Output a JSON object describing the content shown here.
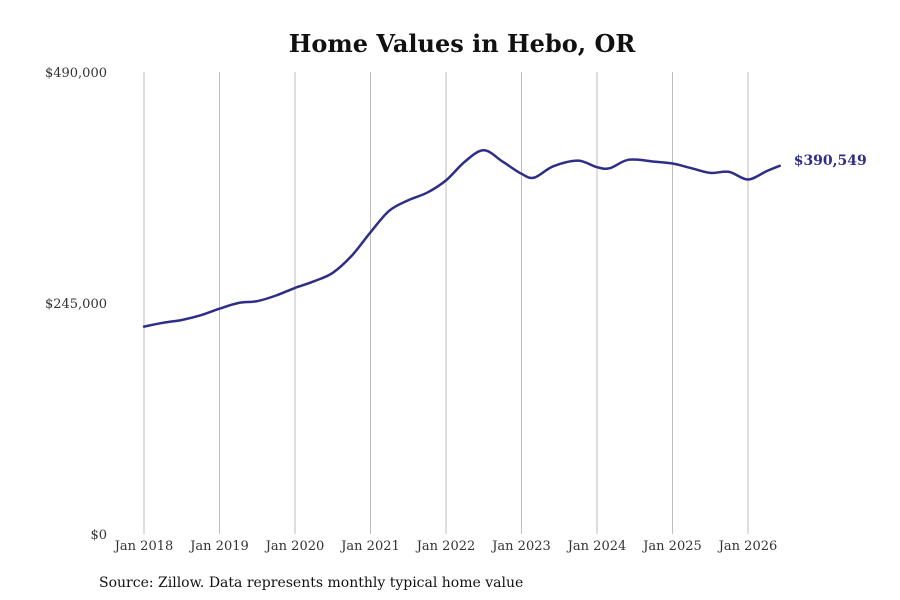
{
  "chart_data": {
    "type": "line",
    "title": "Home Values in Hebo, OR",
    "source": "Source: Zillow. Data represents monthly typical home value",
    "xlabel": "",
    "ylabel": "",
    "ylim": [
      0,
      490000
    ],
    "y_ticks": [
      {
        "value": 0,
        "label": "$0"
      },
      {
        "value": 245000,
        "label": "$245,000"
      },
      {
        "value": 490000,
        "label": "$490,000"
      }
    ],
    "x_ticks": [
      {
        "value": 2018.0,
        "label": "Jan 2018"
      },
      {
        "value": 2019.0,
        "label": "Jan 2019"
      },
      {
        "value": 2020.0,
        "label": "Jan 2020"
      },
      {
        "value": 2021.0,
        "label": "Jan 2021"
      },
      {
        "value": 2022.0,
        "label": "Jan 2022"
      },
      {
        "value": 2023.0,
        "label": "Jan 2023"
      },
      {
        "value": 2024.0,
        "label": "Jan 2024"
      },
      {
        "value": 2025.0,
        "label": "Jan 2025"
      },
      {
        "value": 2026.0,
        "label": "Jan 2026"
      }
    ],
    "grid": "vertical",
    "line_color": "#2e2e86",
    "end_label": "$390,549",
    "series": [
      {
        "x": [
          2018.0,
          2018.25,
          2018.5,
          2018.75,
          2019.0,
          2019.25,
          2019.5,
          2019.75,
          2020.0,
          2020.25,
          2020.5,
          2020.75,
          2021.0,
          2021.25,
          2021.5,
          2021.75,
          2022.0,
          2022.25,
          2022.5,
          2022.75,
          2023.0,
          2023.17,
          2023.42,
          2023.75,
          2024.0,
          2024.17,
          2024.42,
          2024.75,
          2025.0,
          2025.25,
          2025.5,
          2025.75,
          2026.0,
          2026.25,
          2026.42
        ],
        "y": [
          220000,
          224000,
          227000,
          232000,
          239000,
          245000,
          247000,
          253000,
          261000,
          268000,
          277000,
          295000,
          320000,
          343000,
          354000,
          362000,
          375000,
          395000,
          407000,
          395000,
          382000,
          378000,
          390000,
          396000,
          389000,
          388000,
          397000,
          395000,
          393000,
          388000,
          383000,
          384000,
          376000,
          385000,
          390549
        ]
      }
    ]
  }
}
